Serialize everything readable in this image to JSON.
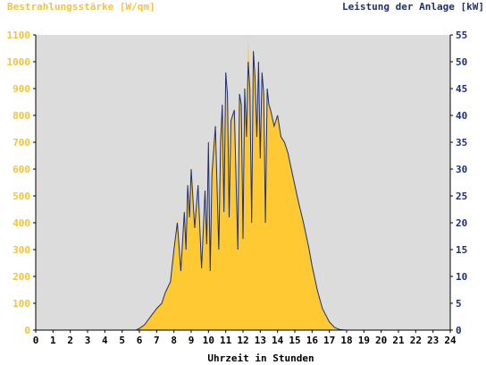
{
  "chart_data": {
    "type": "area",
    "left_axis_label": "Bestrahlungsstärke [W/qm]",
    "right_axis_label": "Leistung der Anlage [kW]",
    "xlabel": "Uhrzeit in Stunden",
    "x_ticks": [
      "0",
      "1",
      "2",
      "3",
      "4",
      "5",
      "6",
      "7",
      "8",
      "9",
      "10",
      "11",
      "12",
      "13",
      "14",
      "15",
      "16",
      "17",
      "18",
      "19",
      "20",
      "21",
      "22",
      "23",
      "24"
    ],
    "y_left_ticks": [
      "0",
      "100",
      "200",
      "300",
      "400",
      "500",
      "600",
      "700",
      "800",
      "900",
      "1000",
      "1100"
    ],
    "y_right_ticks": [
      "0",
      "5",
      "10",
      "15",
      "20",
      "25",
      "30",
      "35",
      "40",
      "45",
      "50",
      "55"
    ],
    "xlim": [
      0,
      24
    ],
    "ylim_left": [
      0,
      1100
    ],
    "ylim_right": [
      0,
      55
    ],
    "grid": false,
    "colors": {
      "irradiance_fill": "#ffc933",
      "power_line": "#1f2f6f",
      "plot_background": "#dcdcdc",
      "left_axis_text": "#f7c23a",
      "right_axis_text": "#1f2f6f"
    },
    "series": [
      {
        "axis": "left",
        "style": "filled-area",
        "x": [
          0,
          5.8,
          6.0,
          6.3,
          6.6,
          7.0,
          7.3,
          7.5,
          7.8,
          8.0,
          8.2,
          8.4,
          8.6,
          8.7,
          8.8,
          8.9,
          9.0,
          9.2,
          9.4,
          9.6,
          9.8,
          9.9,
          10.0,
          10.1,
          10.2,
          10.4,
          10.6,
          10.7,
          10.8,
          10.9,
          11.0,
          11.1,
          11.2,
          11.3,
          11.5,
          11.7,
          11.8,
          11.9,
          12.0,
          12.1,
          12.2,
          12.3,
          12.4,
          12.5,
          12.6,
          12.7,
          12.8,
          12.9,
          13.0,
          13.1,
          13.2,
          13.3,
          13.4,
          13.5,
          13.6,
          13.8,
          14.0,
          14.2,
          14.4,
          14.6,
          14.8,
          15.0,
          15.2,
          15.5,
          15.8,
          16.0,
          16.3,
          16.6,
          17.0,
          17.3,
          17.6,
          18.0,
          18.3,
          18.6,
          18.8,
          19.0,
          24
        ],
        "values": [
          0,
          0,
          5,
          20,
          45,
          80,
          100,
          140,
          180,
          300,
          420,
          220,
          450,
          300,
          520,
          420,
          600,
          380,
          540,
          230,
          520,
          320,
          700,
          220,
          580,
          760,
          300,
          700,
          850,
          450,
          950,
          880,
          430,
          780,
          820,
          300,
          880,
          850,
          350,
          900,
          720,
          1100,
          900,
          400,
          1040,
          950,
          720,
          1000,
          650,
          980,
          880,
          400,
          900,
          850,
          820,
          760,
          800,
          730,
          700,
          660,
          600,
          540,
          480,
          400,
          310,
          240,
          150,
          80,
          35,
          10,
          2,
          0,
          0,
          0,
          0,
          0,
          0
        ]
      },
      {
        "axis": "right",
        "style": "line",
        "x": [
          0,
          5.8,
          6.0,
          6.3,
          6.6,
          7.0,
          7.3,
          7.5,
          7.8,
          8.0,
          8.2,
          8.4,
          8.6,
          8.7,
          8.8,
          8.9,
          9.0,
          9.2,
          9.4,
          9.6,
          9.8,
          9.9,
          10.0,
          10.1,
          10.2,
          10.4,
          10.6,
          10.7,
          10.8,
          10.9,
          11.0,
          11.1,
          11.2,
          11.3,
          11.5,
          11.7,
          11.8,
          11.9,
          12.0,
          12.1,
          12.2,
          12.3,
          12.4,
          12.5,
          12.6,
          12.7,
          12.8,
          12.9,
          13.0,
          13.1,
          13.2,
          13.3,
          13.4,
          13.5,
          13.6,
          13.8,
          14.0,
          14.2,
          14.4,
          14.6,
          14.8,
          15.0,
          15.2,
          15.5,
          15.8,
          16.0,
          16.3,
          16.6,
          17.0,
          17.3,
          17.6,
          18.0,
          18.3,
          18.6,
          18.8,
          19.0,
          24
        ],
        "values": [
          0,
          0,
          0.3,
          1,
          2.3,
          4,
          5,
          7,
          9,
          15,
          20,
          11,
          22,
          15,
          27,
          21,
          30,
          19,
          27,
          11.5,
          26,
          16,
          35,
          11,
          29,
          38,
          15,
          35,
          42,
          22,
          48,
          44,
          21,
          39,
          41,
          15,
          44,
          42,
          17,
          45,
          36,
          50,
          45,
          20,
          52,
          47,
          36,
          50,
          32,
          48,
          44,
          20,
          45,
          42,
          41,
          38,
          40,
          36,
          35,
          33,
          30,
          27,
          24,
          20,
          15.5,
          12,
          7.5,
          4,
          1.5,
          0.5,
          0.1,
          0,
          0,
          0,
          0,
          0,
          0
        ]
      }
    ]
  }
}
